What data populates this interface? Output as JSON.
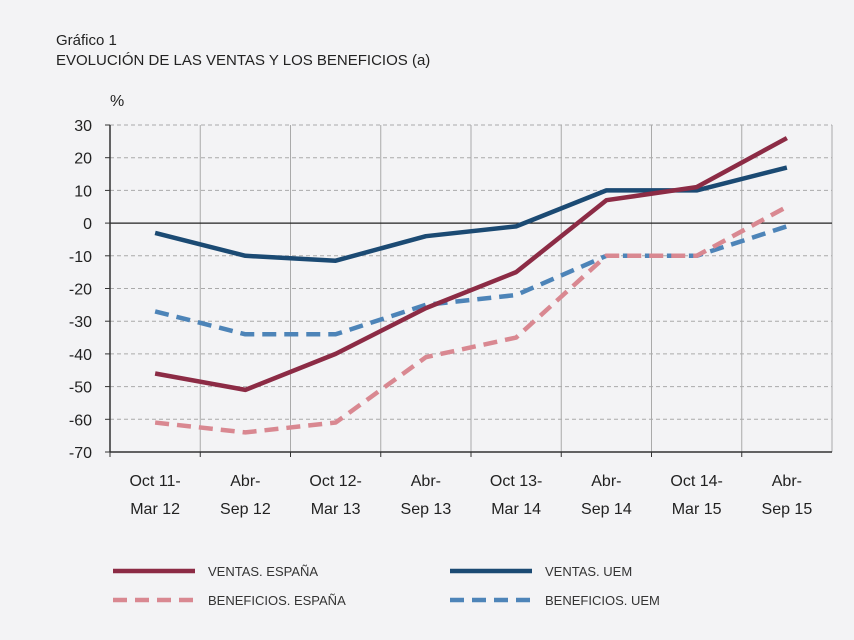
{
  "chart_data": {
    "type": "line",
    "title": "Gráfico 1",
    "subtitle": "EVOLUCIÓN DE LAS VENTAS Y LOS BENEFICIOS (a)",
    "ylabel": "%",
    "xlabel": "",
    "ylim": [
      -70,
      30
    ],
    "yticks": [
      30,
      20,
      10,
      0,
      -10,
      -20,
      -30,
      -40,
      -50,
      -60,
      -70
    ],
    "grid": true,
    "legend_position": "bottom",
    "categories": [
      [
        "Oct 11-",
        "Mar 12"
      ],
      [
        "Abr-",
        "Sep 12"
      ],
      [
        "Oct 12-",
        "Mar 13"
      ],
      [
        "Abr-",
        "Sep 13"
      ],
      [
        "Oct 13-",
        "Mar 14"
      ],
      [
        "Abr-",
        "Sep 14"
      ],
      [
        "Oct 14-",
        "Mar 15"
      ],
      [
        "Abr-",
        "Sep 15"
      ]
    ],
    "series": [
      {
        "name": "VENTAS. ESPAÑA",
        "color": "#8c2b45",
        "dashed": false,
        "values": [
          -46,
          -51,
          -40,
          -26,
          -15,
          7,
          11,
          26
        ]
      },
      {
        "name": "VENTAS. UEM",
        "color": "#1b4a73",
        "dashed": false,
        "values": [
          -3,
          -10,
          -11.5,
          -4,
          -1,
          10,
          10,
          17
        ]
      },
      {
        "name": "BENEFICIOS. ESPAÑA",
        "color": "#d98891",
        "dashed": true,
        "values": [
          -61,
          -64,
          -61,
          -41,
          -35,
          -10,
          -10,
          5
        ]
      },
      {
        "name": "BENEFICIOS. UEM",
        "color": "#4d84b8",
        "dashed": true,
        "values": [
          -27,
          -34,
          -34,
          -25,
          -22,
          -10,
          -10,
          -1
        ]
      }
    ]
  }
}
